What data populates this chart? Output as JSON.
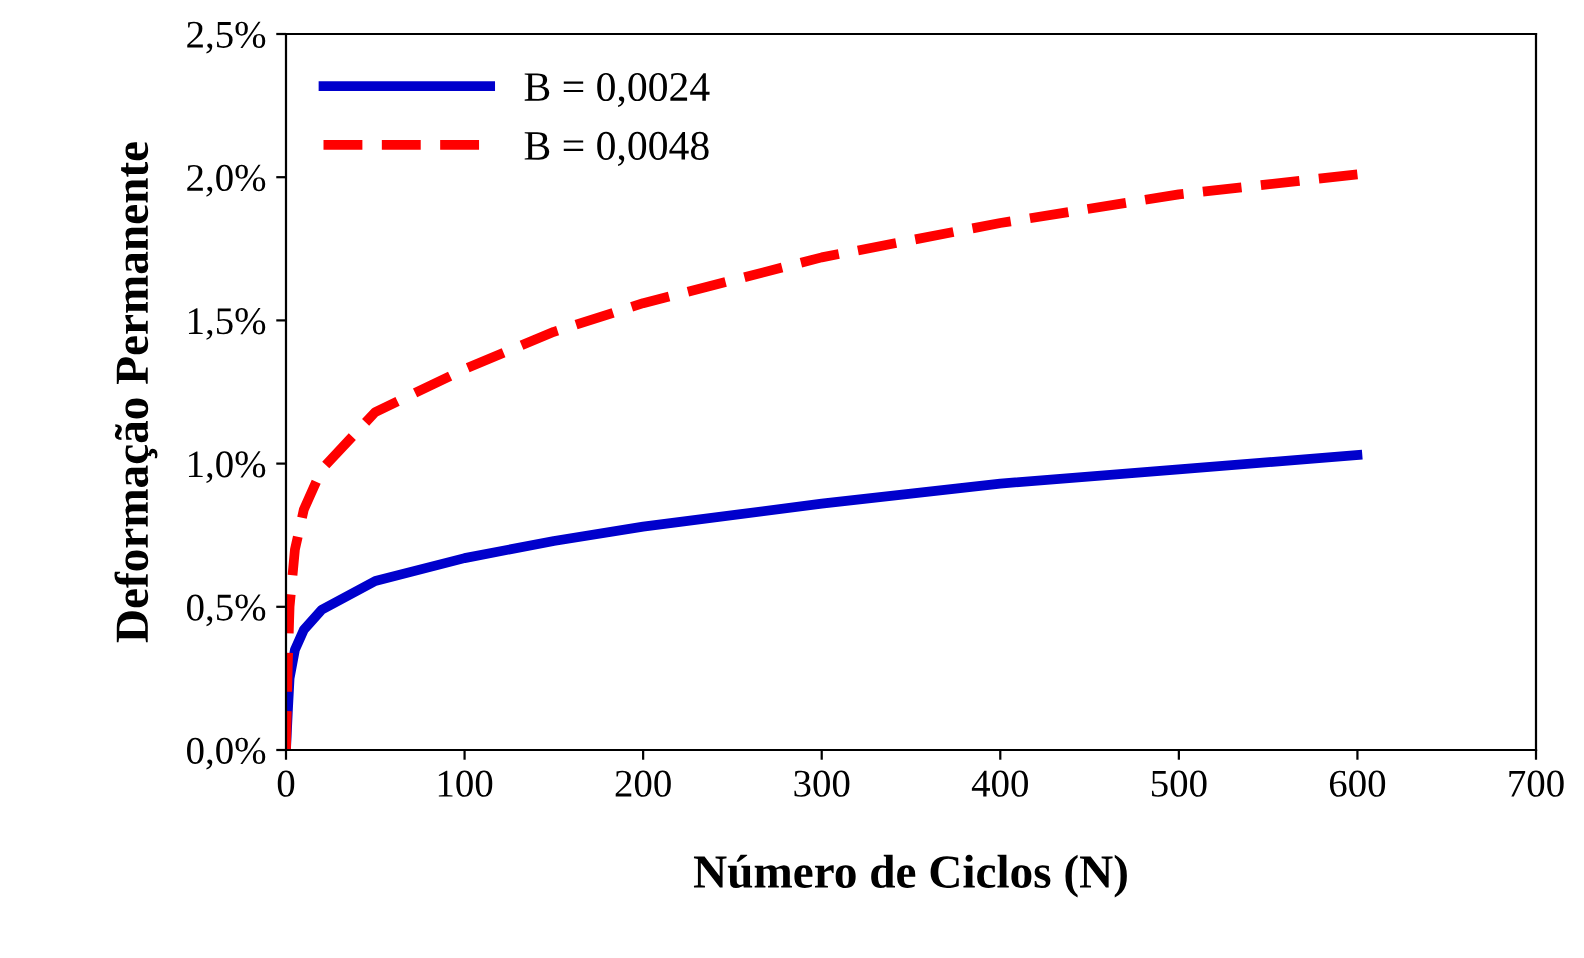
{
  "chart_data": {
    "type": "line",
    "xlabel": "Número de Ciclos (N)",
    "ylabel": "Deformação Permanente",
    "xlim": [
      0,
      700
    ],
    "xticks": [
      0,
      100,
      200,
      300,
      400,
      500,
      600,
      700
    ],
    "ylim": [
      0,
      2.5
    ],
    "yticks": [
      {
        "value": 0,
        "label": "0,0%"
      },
      {
        "value": 0.5,
        "label": "0,5%"
      },
      {
        "value": 1.0,
        "label": "1,0%"
      },
      {
        "value": 1.5,
        "label": "1,5%"
      },
      {
        "value": 2.0,
        "label": "2,0%"
      },
      {
        "value": 2.5,
        "label": "2,5%"
      }
    ],
    "grid": false,
    "legend": "top left",
    "marker": "none",
    "series": [
      {
        "name": "B = 0,0024",
        "color": "#0000cc",
        "line_style": "solid",
        "x": [
          0,
          1,
          2,
          5,
          10,
          20,
          50,
          100,
          150,
          200,
          300,
          400,
          500,
          600
        ],
        "values": [
          0,
          0.13,
          0.25,
          0.35,
          0.42,
          0.49,
          0.59,
          0.67,
          0.73,
          0.78,
          0.86,
          0.93,
          0.98,
          1.03
        ]
      },
      {
        "name": "B = 0,0048",
        "color": "#ff0000",
        "line_style": "dashed",
        "x": [
          0,
          1,
          2,
          5,
          10,
          20,
          50,
          100,
          150,
          200,
          300,
          400,
          500,
          600
        ],
        "values": [
          0,
          0.3,
          0.5,
          0.7,
          0.84,
          0.98,
          1.18,
          1.33,
          1.46,
          1.56,
          1.72,
          1.84,
          1.94,
          2.01
        ]
      }
    ]
  }
}
